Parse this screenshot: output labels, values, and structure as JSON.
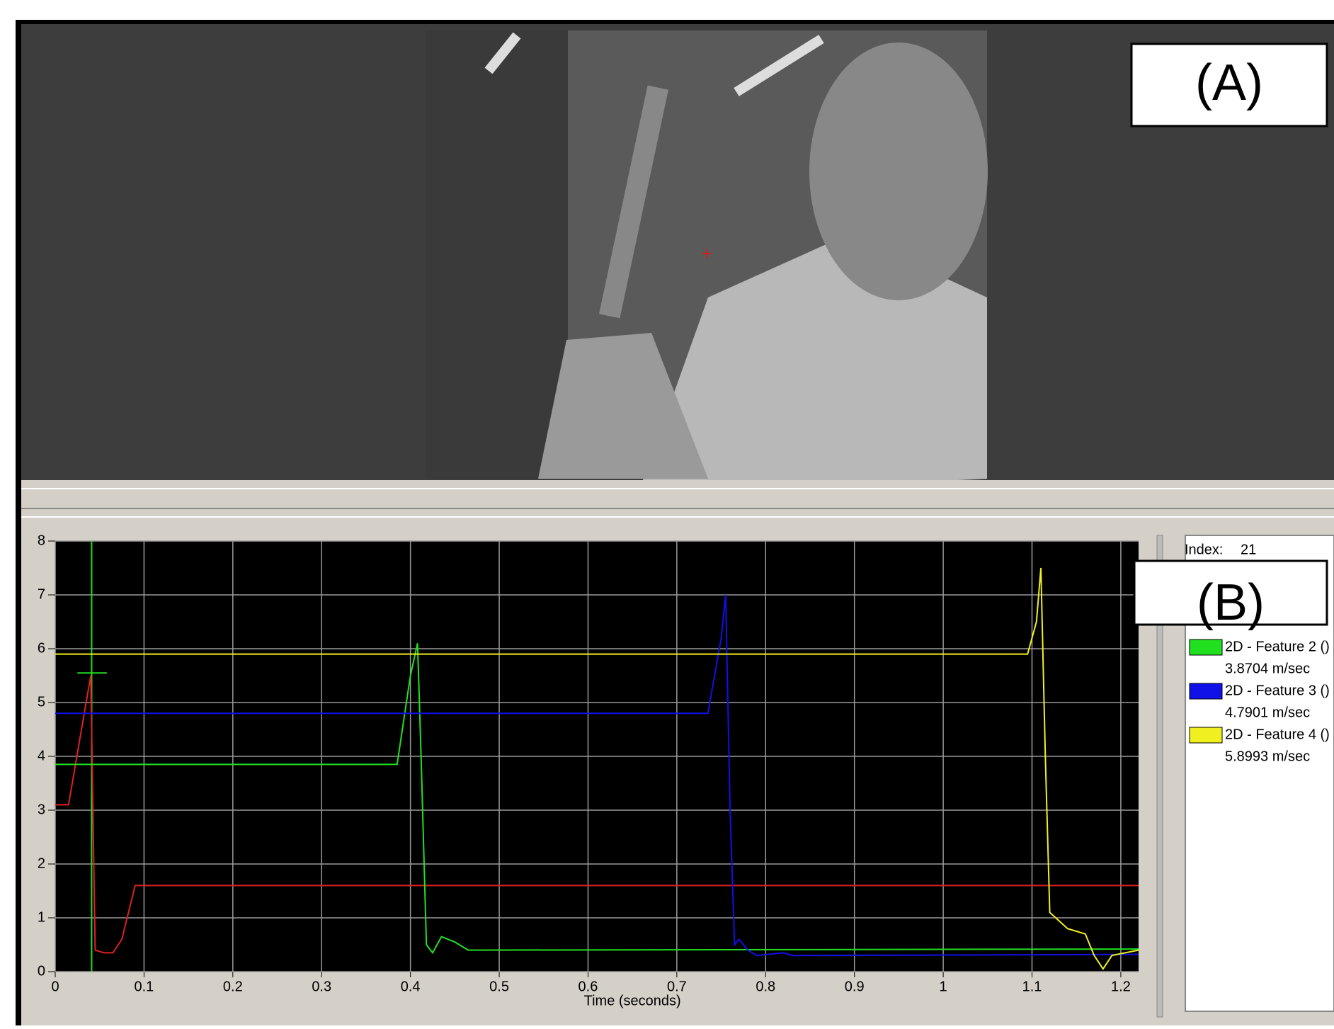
{
  "panel_a_label": "(A)",
  "panel_b_label": "(B)",
  "index_label": "Index:",
  "index": 21,
  "chart_data": {
    "type": "line",
    "x_label": "Time (seconds)",
    "xlim": [
      0,
      1.22
    ],
    "ylim": [
      0,
      8
    ],
    "xticks": [
      0,
      0.1,
      0.2,
      0.3,
      0.4,
      0.5,
      0.6,
      0.7,
      0.8,
      0.9,
      1,
      1.1,
      1.2
    ],
    "yticks": [
      0,
      1,
      2,
      3,
      4,
      5,
      6,
      7,
      8
    ],
    "grid": true,
    "series": [
      {
        "color": "#e02020",
        "x": [
          0,
          0.015,
          0.04,
          0.045,
          0.055,
          0.065,
          0.075,
          0.09,
          1.22
        ],
        "values": [
          3.1,
          3.1,
          5.5,
          0.4,
          0.35,
          0.35,
          0.6,
          1.6,
          1.6
        ]
      },
      {
        "name": "2D - Feature 2 ()",
        "readout": "3.8704 m/sec",
        "color": "#20e020",
        "x": [
          0,
          0.385,
          0.4,
          0.408,
          0.412,
          0.418,
          0.425,
          0.435,
          0.45,
          0.465,
          1.22
        ],
        "values": [
          3.85,
          3.85,
          5.5,
          6.1,
          4,
          0.5,
          0.35,
          0.65,
          0.55,
          0.4,
          0.42
        ]
      },
      {
        "name": "2D - Feature 3 ()",
        "readout": "4.7901 m/sec",
        "color": "#1010e8",
        "x": [
          0,
          0.735,
          0.75,
          0.755,
          0.76,
          0.765,
          0.77,
          0.78,
          0.79,
          0.82,
          0.83,
          1.22
        ],
        "values": [
          4.8,
          4.8,
          6.2,
          7,
          3,
          0.5,
          0.6,
          0.4,
          0.3,
          0.35,
          0.3,
          0.32
        ]
      },
      {
        "name": "2D - Feature 4 ()",
        "readout": "5.8993 m/sec",
        "color": "#f0f020",
        "x": [
          0,
          1.095,
          1.105,
          1.11,
          1.115,
          1.12,
          1.13,
          1.14,
          1.16,
          1.17,
          1.18,
          1.19,
          1.22
        ],
        "values": [
          5.9,
          5.9,
          6.5,
          7.5,
          4,
          1.1,
          0.95,
          0.8,
          0.7,
          0.3,
          0.05,
          0.3,
          0.4
        ]
      }
    ]
  }
}
